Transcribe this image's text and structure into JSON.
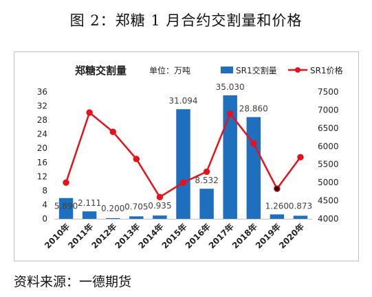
{
  "figure": {
    "title": "图 2：郑糖 1 月合约交割量和价格",
    "source": "资料来源：一德期货"
  },
  "chart_data": {
    "type": "bar",
    "title": "郑糖交割量",
    "subtitle": "单位：万吨",
    "categories": [
      "2010年",
      "2011年",
      "2012年",
      "2013年",
      "2014年",
      "2015年",
      "2016年",
      "2017年",
      "2018年",
      "2019年",
      "2020年"
    ],
    "series": [
      {
        "name": "SR1交割量",
        "type": "bar",
        "axis": "left",
        "color": "#1f6fbf",
        "values": [
          5.89,
          2.111,
          0.2,
          0.705,
          0.935,
          31.094,
          8.532,
          35.03,
          28.86,
          1.26,
          0.873
        ],
        "labels": [
          "5.890",
          "2.111",
          "0.200",
          "0.705",
          "0.935",
          "31.094",
          "8.532",
          "35.030",
          "28.860",
          "1.260",
          "0.873"
        ]
      },
      {
        "name": "SR1价格",
        "type": "line",
        "axis": "right",
        "color": "#e8101a",
        "values": [
          5000,
          6930,
          6400,
          5650,
          4600,
          5000,
          5300,
          6900,
          6080,
          4830,
          5700
        ]
      }
    ],
    "y_left": {
      "min": 0,
      "max": 36,
      "ticks": [
        "0",
        "4",
        "8",
        "12",
        "16",
        "20",
        "24",
        "28",
        "32",
        "36"
      ]
    },
    "y_right": {
      "min": 4000,
      "max": 7500,
      "ticks": [
        "4000",
        "4500",
        "5000",
        "5500",
        "6000",
        "6500",
        "7000",
        "7500"
      ]
    },
    "grid": false,
    "legend": "top-right"
  }
}
